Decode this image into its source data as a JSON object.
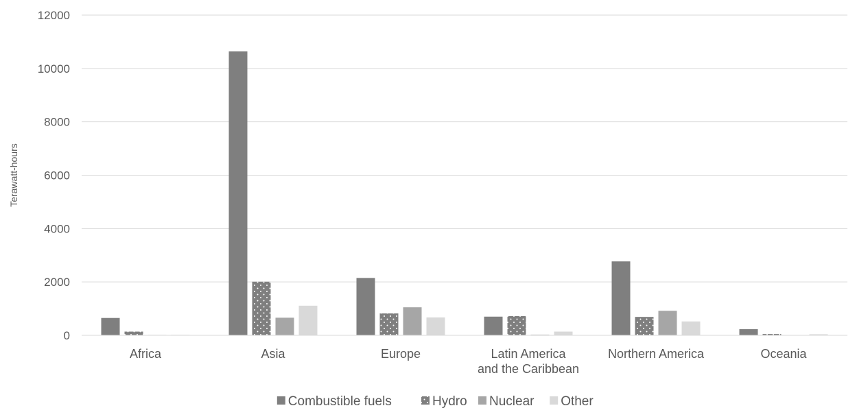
{
  "chart_data": {
    "type": "bar",
    "title": "",
    "xlabel": "",
    "ylabel": "Terawatt-hours",
    "ylim": [
      0,
      12000
    ],
    "yticks": [
      0,
      2000,
      4000,
      6000,
      8000,
      10000,
      12000
    ],
    "grid": true,
    "legend_position": "bottom",
    "categories": [
      [
        "Africa"
      ],
      [
        "Asia"
      ],
      [
        "Europe"
      ],
      [
        "Latin America",
        "and the Caribbean"
      ],
      [
        "Northern America"
      ],
      [
        "Oceania"
      ]
    ],
    "series": [
      {
        "name": "Combustible fuels",
        "color": "#7f7f7f",
        "pattern": "solid",
        "values": [
          650,
          10640,
          2150,
          700,
          2770,
          230
        ]
      },
      {
        "name": "Hydro",
        "color": "#7f7f7f",
        "pattern": "dots",
        "values": [
          140,
          2010,
          820,
          720,
          690,
          50
        ]
      },
      {
        "name": "Nuclear",
        "color": "#a6a6a6",
        "pattern": "solid",
        "values": [
          15,
          660,
          1050,
          25,
          920,
          0
        ]
      },
      {
        "name": "Other",
        "color": "#d9d9d9",
        "pattern": "solid",
        "values": [
          20,
          1110,
          670,
          140,
          520,
          40
        ]
      }
    ]
  }
}
